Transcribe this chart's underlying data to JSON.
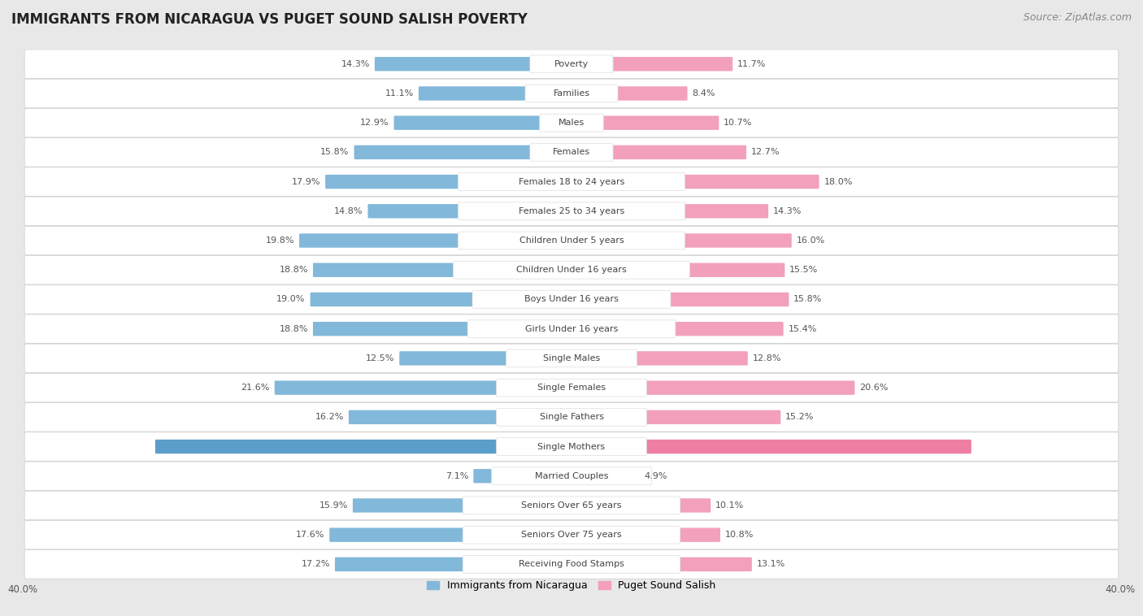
{
  "title": "IMMIGRANTS FROM NICARAGUA VS PUGET SOUND SALISH POVERTY",
  "source": "Source: ZipAtlas.com",
  "categories": [
    "Poverty",
    "Families",
    "Males",
    "Females",
    "Females 18 to 24 years",
    "Females 25 to 34 years",
    "Children Under 5 years",
    "Children Under 16 years",
    "Boys Under 16 years",
    "Girls Under 16 years",
    "Single Males",
    "Single Females",
    "Single Fathers",
    "Single Mothers",
    "Married Couples",
    "Seniors Over 65 years",
    "Seniors Over 75 years",
    "Receiving Food Stamps"
  ],
  "nicaragua_values": [
    14.3,
    11.1,
    12.9,
    15.8,
    17.9,
    14.8,
    19.8,
    18.8,
    19.0,
    18.8,
    12.5,
    21.6,
    16.2,
    30.3,
    7.1,
    15.9,
    17.6,
    17.2
  ],
  "salish_values": [
    11.7,
    8.4,
    10.7,
    12.7,
    18.0,
    14.3,
    16.0,
    15.5,
    15.8,
    15.4,
    12.8,
    20.6,
    15.2,
    29.1,
    4.9,
    10.1,
    10.8,
    13.1
  ],
  "nicaragua_color": "#82b8d9",
  "salish_color": "#f2a0bb",
  "nicaragua_label": "Immigrants from Nicaragua",
  "salish_label": "Puget Sound Salish",
  "xlim": 40.0,
  "background_color": "#e8e8e8",
  "row_bg_color": "#ffffff",
  "title_fontsize": 12,
  "source_fontsize": 9,
  "label_fontsize": 8,
  "value_fontsize": 8,
  "highlight_row": 13,
  "highlight_nic_color": "#5b9ec9",
  "highlight_sal_color": "#ee7fa3"
}
